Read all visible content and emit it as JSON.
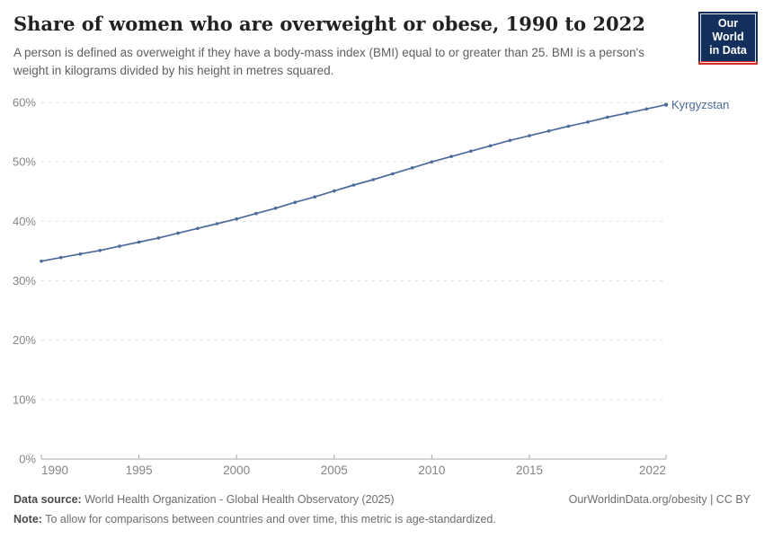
{
  "header": {
    "title": "Share of women who are overweight or obese, 1990 to 2022",
    "subtitle": "A person is defined as overweight if they have a body-mass index (BMI) equal to or greater than 25. BMI is a person's weight in kilograms divided by his height in metres squared.",
    "logo_line1": "Our World",
    "logo_line2": "in Data",
    "logo_bg_color": "#12305b",
    "logo_accent_color": "#d3302b"
  },
  "chart_data": {
    "type": "line",
    "title": "Share of women who are overweight or obese, 1990 to 2022",
    "x": [
      1990,
      1991,
      1992,
      1993,
      1994,
      1995,
      1996,
      1997,
      1998,
      1999,
      2000,
      2001,
      2002,
      2003,
      2004,
      2005,
      2006,
      2007,
      2008,
      2009,
      2010,
      2011,
      2012,
      2013,
      2014,
      2015,
      2016,
      2017,
      2018,
      2019,
      2020,
      2021,
      2022
    ],
    "series": [
      {
        "name": "Kyrgyzstan",
        "color": "#4c6a9c",
        "values": [
          33.3,
          33.9,
          34.5,
          35.1,
          35.8,
          36.5,
          37.2,
          38.0,
          38.8,
          39.6,
          40.4,
          41.3,
          42.2,
          43.2,
          44.1,
          45.1,
          46.1,
          47.0,
          48.0,
          49.0,
          50.0,
          50.9,
          51.8,
          52.7,
          53.6,
          54.4,
          55.2,
          56.0,
          56.7,
          57.5,
          58.2,
          58.9,
          59.6
        ]
      }
    ],
    "end_label": "Kyrgyzstan",
    "xlabel": "",
    "ylabel": "",
    "ylim": [
      0,
      60
    ],
    "yticks": [
      0,
      10,
      20,
      30,
      40,
      50,
      60
    ],
    "ytick_suffix": "%",
    "xticks": [
      1990,
      1995,
      2000,
      2005,
      2010,
      2015,
      2022
    ],
    "grid": "horizontal-dashed",
    "legend_position": "end-of-line",
    "layout": {
      "grid_color": "#dcdcdc",
      "axis_color": "#a8a8a8",
      "tick_label_color": "#848484",
      "marker": "dot"
    }
  },
  "footer": {
    "source_label": "Data source:",
    "source_text": "World Health Organization - Global Health Observatory (2025)",
    "attribution": "OurWorldinData.org/obesity | CC BY",
    "note_label": "Note:",
    "note_text": "To allow for comparisons between countries and over time, this metric is age-standardized."
  }
}
